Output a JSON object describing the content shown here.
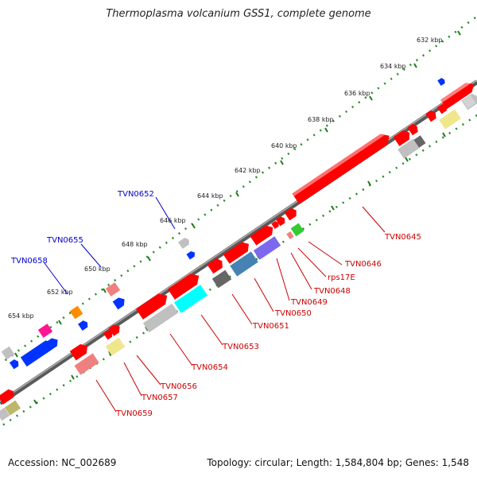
{
  "title": "Thermoplasma volcanium GSS1, complete genome",
  "accession": "Accession: NC_002689",
  "topology": "Topology: circular; Length: 1,584,804 bp; Genes: 1,548",
  "tick_labels": [
    "632 kbp",
    "634 kbp",
    "636 kbp",
    "638 kbp",
    "640 kbp",
    "642 kbp",
    "644 kbp",
    "646 kbp",
    "648 kbp",
    "650 kbp",
    "652 kbp",
    "654 kbp"
  ],
  "forward_gene_labels": [
    "TVN0652",
    "TVN0655",
    "TVN0658"
  ],
  "reverse_gene_labels": [
    "TVN0645",
    "TVN0646",
    "rps17E",
    "TVN0648",
    "TVN0649",
    "TVN0650",
    "TVN0651",
    "TVN0653",
    "TVN0654",
    "TVN0656",
    "TVN0657",
    "TVN0659"
  ],
  "colors": {
    "forward_label": "#0000cc",
    "reverse_label": "#cc0000",
    "backbone": "#808080",
    "tick_dots": "#228b22"
  }
}
